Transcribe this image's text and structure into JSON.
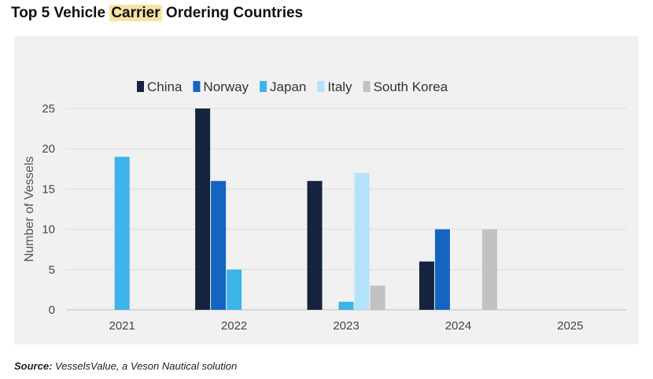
{
  "header": {
    "title_pre": "Top 5 Vehicle ",
    "title_highlight": "Carrier",
    "title_post": " Ordering Countries"
  },
  "footer": {
    "source_label": "Source:",
    "source_text": " VesselsValue, a Veson Nautical solution"
  },
  "chart_data": {
    "type": "bar",
    "categories": [
      "2021",
      "2022",
      "2023",
      "2024",
      "2025"
    ],
    "series": [
      {
        "name": "China",
        "color": "#14243f",
        "values": [
          0,
          25,
          16,
          6,
          0
        ]
      },
      {
        "name": "Norway",
        "color": "#1565c0",
        "values": [
          0,
          16,
          0,
          10,
          0
        ]
      },
      {
        "name": "Japan",
        "color": "#3db4ea",
        "values": [
          19,
          5,
          1,
          0,
          0
        ]
      },
      {
        "name": "Italy",
        "color": "#b3e3fb",
        "values": [
          0,
          0,
          17,
          0,
          0
        ]
      },
      {
        "name": "South Korea",
        "color": "#c2c2c2",
        "values": [
          0,
          0,
          3,
          10,
          0
        ]
      }
    ],
    "xlabel": "",
    "ylabel": "Number of Vessels",
    "ylim": [
      0,
      25
    ],
    "yticks": [
      0,
      5,
      10,
      15,
      20,
      25
    ],
    "grid": true,
    "legend_position": "top"
  }
}
